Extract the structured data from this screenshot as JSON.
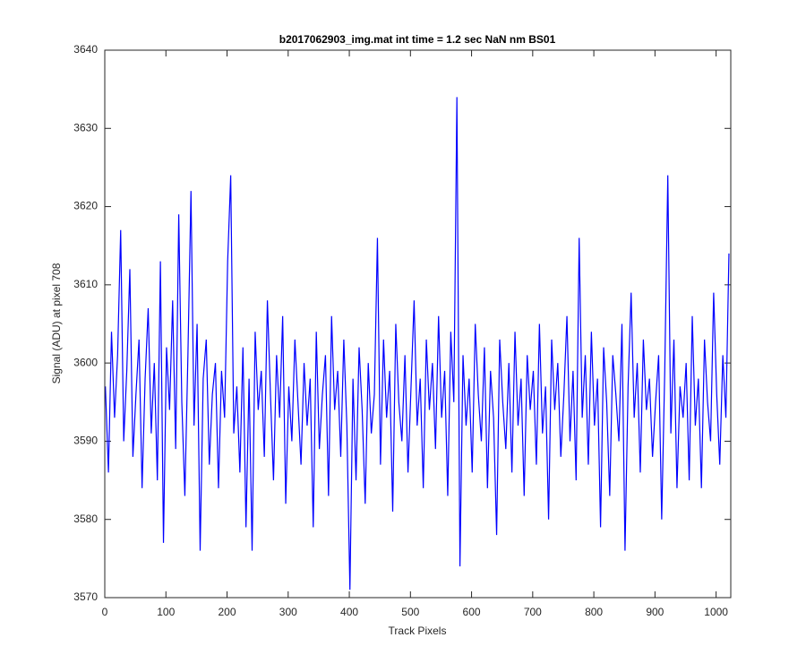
{
  "chart_data": {
    "type": "line",
    "title": "b2017062903_img.mat int time = 1.2 sec  NaN nm BS01",
    "x_label": "Track Pixels",
    "y_label": "Signal (ADU) at pixel 708",
    "color": "#0000ff",
    "xlim": [
      0,
      1024
    ],
    "ylim": [
      3570,
      3640
    ],
    "xticks": [
      0,
      100,
      200,
      300,
      400,
      500,
      600,
      700,
      800,
      900,
      1000
    ],
    "yticks": [
      3570,
      3580,
      3590,
      3600,
      3610,
      3620,
      3630,
      3640
    ],
    "grid": false,
    "x": [
      1,
      6,
      11,
      16,
      21,
      26,
      31,
      36,
      41,
      46,
      51,
      56,
      61,
      66,
      71,
      76,
      81,
      86,
      91,
      96,
      101,
      106,
      111,
      116,
      121,
      126,
      131,
      136,
      141,
      146,
      151,
      156,
      161,
      166,
      171,
      176,
      181,
      186,
      191,
      196,
      201,
      206,
      211,
      216,
      221,
      226,
      231,
      236,
      241,
      246,
      251,
      256,
      261,
      266,
      271,
      276,
      281,
      286,
      291,
      296,
      301,
      306,
      311,
      316,
      321,
      326,
      331,
      336,
      341,
      346,
      351,
      356,
      361,
      366,
      371,
      376,
      381,
      386,
      391,
      396,
      401,
      406,
      411,
      416,
      421,
      426,
      431,
      436,
      441,
      446,
      451,
      456,
      461,
      466,
      471,
      476,
      481,
      486,
      491,
      496,
      501,
      506,
      511,
      516,
      521,
      526,
      531,
      536,
      541,
      546,
      551,
      556,
      561,
      566,
      571,
      576,
      581,
      586,
      591,
      596,
      601,
      606,
      611,
      616,
      621,
      626,
      631,
      636,
      641,
      646,
      651,
      656,
      661,
      666,
      671,
      676,
      681,
      686,
      691,
      696,
      701,
      706,
      711,
      716,
      721,
      726,
      731,
      736,
      741,
      746,
      751,
      756,
      761,
      766,
      771,
      776,
      781,
      786,
      791,
      796,
      801,
      806,
      811,
      816,
      821,
      826,
      831,
      836,
      841,
      846,
      851,
      856,
      861,
      866,
      871,
      876,
      881,
      886,
      891,
      896,
      901,
      906,
      911,
      916,
      921,
      926,
      931,
      936,
      941,
      946,
      951,
      956,
      961,
      966,
      971,
      976,
      981,
      986,
      991,
      996,
      1001,
      1006,
      1011,
      1016,
      1021
    ],
    "values": [
      3597,
      3586,
      3604,
      3593,
      3601,
      3617,
      3590,
      3599,
      3612,
      3588,
      3596,
      3603,
      3584,
      3598,
      3607,
      3591,
      3600,
      3585,
      3613,
      3577,
      3602,
      3594,
      3608,
      3589,
      3619,
      3595,
      3583,
      3601,
      3622,
      3592,
      3605,
      3576,
      3598,
      3603,
      3587,
      3596,
      3600,
      3584,
      3599,
      3593,
      3613,
      3624,
      3591,
      3597,
      3586,
      3602,
      3579,
      3598,
      3576,
      3604,
      3594,
      3599,
      3588,
      3608,
      3596,
      3585,
      3601,
      3593,
      3606,
      3582,
      3597,
      3590,
      3603,
      3595,
      3587,
      3600,
      3592,
      3598,
      3579,
      3604,
      3589,
      3596,
      3601,
      3583,
      3606,
      3594,
      3599,
      3588,
      3603,
      3592,
      3571,
      3598,
      3585,
      3602,
      3594,
      3582,
      3600,
      3591,
      3596,
      3616,
      3587,
      3603,
      3593,
      3599,
      3581,
      3605,
      3595,
      3590,
      3601,
      3586,
      3597,
      3608,
      3592,
      3598,
      3584,
      3603,
      3594,
      3600,
      3589,
      3606,
      3593,
      3599,
      3583,
      3604,
      3595,
      3634,
      3574,
      3601,
      3592,
      3598,
      3586,
      3605,
      3596,
      3590,
      3602,
      3584,
      3599,
      3593,
      3578,
      3603,
      3595,
      3589,
      3600,
      3586,
      3604,
      3592,
      3598,
      3583,
      3601,
      3594,
      3599,
      3587,
      3605,
      3591,
      3597,
      3580,
      3603,
      3594,
      3600,
      3588,
      3596,
      3606,
      3590,
      3599,
      3585,
      3616,
      3593,
      3601,
      3587,
      3604,
      3592,
      3598,
      3579,
      3602,
      3595,
      3583,
      3601,
      3596,
      3590,
      3605,
      3576,
      3597,
      3609,
      3593,
      3600,
      3586,
      3603,
      3594,
      3598,
      3588,
      3595,
      3601,
      3580,
      3599,
      3624,
      3591,
      3603,
      3584,
      3597,
      3593,
      3600,
      3585,
      3606,
      3592,
      3598,
      3584,
      3603,
      3595,
      3590,
      3609,
      3596,
      3587,
      3601,
      3593,
      3614
    ]
  }
}
